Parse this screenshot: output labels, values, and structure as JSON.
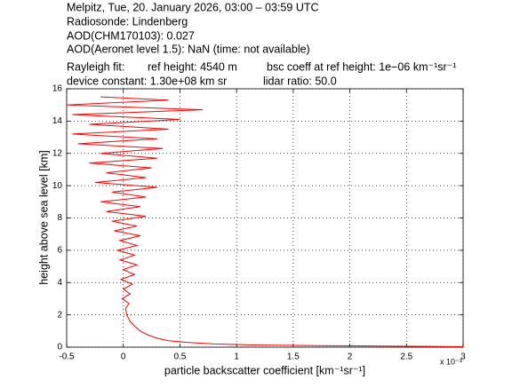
{
  "chart_data": {
    "type": "line",
    "header_lines": [
      "Melpitz, Tue, 20. January 2026, 03:00 – 03:59 UTC",
      "Radiosonde: Lindenberg",
      "AOD(CHM170103): 0.027",
      "AOD(Aeronet level 1.5): NaN   (time: not available)"
    ],
    "rayleigh_line": [
      "Rayleigh fit:",
      "ref height: 4540 m",
      "bsc coeff at ref height: 1e−06 km⁻¹sr⁻¹"
    ],
    "device_line": [
      "device constant: 1.30e+08 km sr",
      "lidar ratio: 50.0"
    ],
    "xlabel": "particle backscatter coefficient [km⁻¹sr⁻¹]",
    "ylabel": "height above sea level [km]",
    "x_multiplier": "x 10⁻³",
    "x": [
      3.0,
      2.0,
      1.2,
      0.8,
      0.55,
      0.4,
      0.3,
      0.22,
      0.15,
      0.1,
      0.06,
      0.03,
      0.02,
      0.05,
      -0.01,
      0.06,
      0.0,
      0.08,
      -0.02,
      0.1,
      0.0,
      0.12,
      -0.03,
      0.1,
      -0.05,
      0.12,
      -0.03,
      0.15,
      -0.08,
      0.12,
      -0.1,
      0.2,
      -0.15,
      0.15,
      -0.2,
      0.2,
      -0.1,
      0.3,
      -0.25,
      0.2,
      -0.15,
      0.25,
      -0.3,
      0.3,
      -0.2,
      0.35,
      -0.4,
      0.3,
      -0.45,
      0.4,
      -0.3,
      0.5,
      -0.45,
      0.7,
      -0.5,
      0.4,
      -0.2
    ],
    "series": [
      {
        "color": "#ff0000",
        "values": [
          0.03,
          0.08,
          0.13,
          0.2,
          0.3,
          0.4,
          0.55,
          0.75,
          1.0,
          1.3,
          1.6,
          2.0,
          2.4,
          2.7,
          3.0,
          3.3,
          3.6,
          3.9,
          4.2,
          4.5,
          4.8,
          5.1,
          5.4,
          5.7,
          6.0,
          6.3,
          6.6,
          6.9,
          7.2,
          7.5,
          7.8,
          8.1,
          8.4,
          8.7,
          9.0,
          9.3,
          9.6,
          9.9,
          10.2,
          10.5,
          10.8,
          11.1,
          11.4,
          11.7,
          12.0,
          12.3,
          12.6,
          12.9,
          13.2,
          13.5,
          13.8,
          14.1,
          14.4,
          14.7,
          15.0,
          15.3,
          15.5
        ]
      }
    ],
    "xlim": [
      -0.5,
      3
    ],
    "xticks": [
      -0.5,
      0,
      0.5,
      1,
      1.5,
      2,
      2.5,
      3
    ],
    "ylim": [
      0,
      16
    ],
    "yticks": [
      0,
      2,
      4,
      6,
      8,
      10,
      12,
      14,
      16
    ],
    "grid": true
  }
}
